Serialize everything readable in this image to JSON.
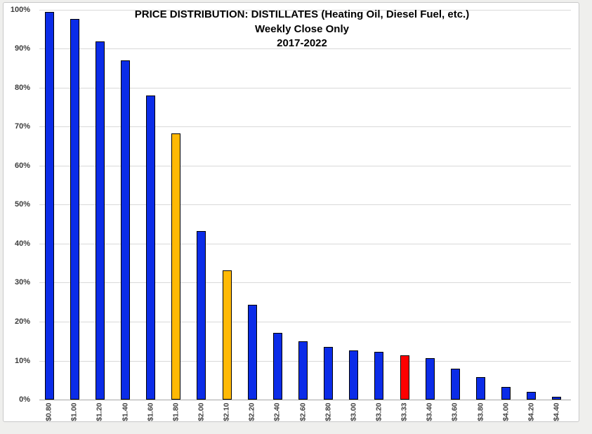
{
  "page": {
    "background": "#efefed"
  },
  "chart": {
    "title": "PRICE DISTRIBUTION: DISTILLATES (Heating Oil, Diesel Fuel, etc.)",
    "subtitle": "Weekly Close Only",
    "period": "2017-2022"
  },
  "chart_data": {
    "type": "bar",
    "title": "PRICE DISTRIBUTION: DISTILLATES (Heating Oil, Diesel Fuel, etc.)",
    "subtitle": "Weekly Close Only",
    "period": "2017-2022",
    "categories": [
      "$0.80",
      "$1.00",
      "$1.20",
      "$1.40",
      "$1.60",
      "$1.80",
      "$2.00",
      "$2.10",
      "$2.20",
      "$2.40",
      "$2.60",
      "$2.80",
      "$3.00",
      "$3.20",
      "$3.33",
      "$3.40",
      "$3.60",
      "$3.80",
      "$4.00",
      "$4.20",
      "$4.40"
    ],
    "values": [
      99.4,
      97.6,
      91.8,
      87.0,
      77.9,
      68.2,
      43.3,
      33.1,
      24.3,
      17.1,
      15.0,
      13.5,
      12.7,
      12.3,
      11.4,
      10.7,
      7.9,
      5.8,
      3.3,
      2.0,
      0.7
    ],
    "bar_color_keys": [
      "blue",
      "blue",
      "blue",
      "blue",
      "blue",
      "orange",
      "blue",
      "orange",
      "blue",
      "blue",
      "blue",
      "blue",
      "blue",
      "blue",
      "red",
      "blue",
      "blue",
      "blue",
      "blue",
      "blue",
      "blue"
    ],
    "palette": {
      "blue": "#0B2CE8",
      "orange": "#FFB905",
      "red": "#FE0000"
    },
    "bar_border_color": "#000000",
    "ytick_labels": [
      "0%",
      "10%",
      "20%",
      "30%",
      "40%",
      "50%",
      "60%",
      "70%",
      "80%",
      "90%",
      "100%"
    ],
    "ylim": [
      0,
      100
    ],
    "ytick_step": 10,
    "grid": true,
    "legend": "none",
    "x_label_rotation_deg": -90
  }
}
